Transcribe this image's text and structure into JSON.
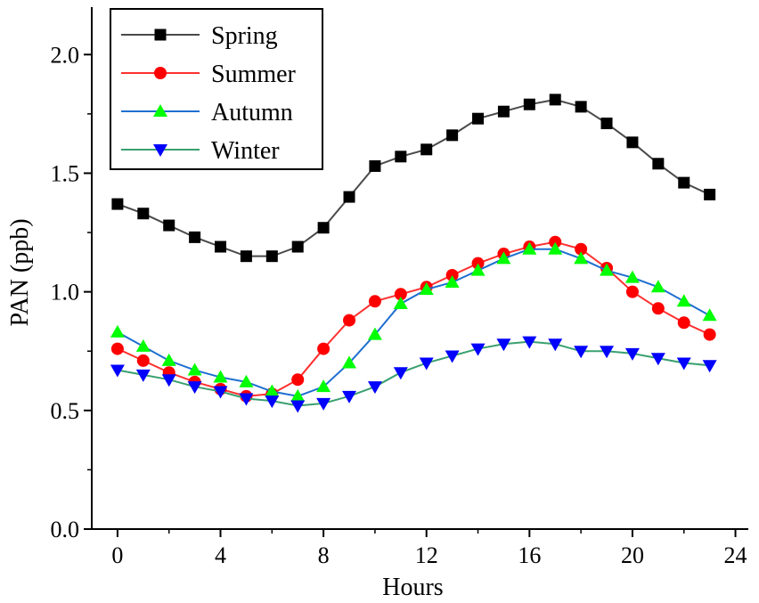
{
  "chart_data": {
    "type": "line",
    "title": "",
    "xlabel": "Hours",
    "ylabel": "PAN (ppb)",
    "xlim": [
      -1,
      24.5
    ],
    "ylim": [
      0.0,
      2.2
    ],
    "x_ticks": [
      0,
      4,
      8,
      12,
      16,
      20,
      24
    ],
    "x_tick_labels": [
      "0",
      "4",
      "8",
      "12",
      "16",
      "20",
      "24"
    ],
    "y_ticks": [
      0.0,
      0.5,
      1.0,
      1.5,
      2.0
    ],
    "y_tick_labels": [
      "0.0",
      "0.5",
      "1.0",
      "1.5",
      "2.0"
    ],
    "grid": false,
    "legend_position": "top-left",
    "x": [
      0,
      1,
      2,
      3,
      4,
      5,
      6,
      7,
      8,
      9,
      10,
      11,
      12,
      13,
      14,
      15,
      16,
      17,
      18,
      19,
      20,
      21,
      22,
      23
    ],
    "series": [
      {
        "name": "Spring",
        "color": "#4a4a4a",
        "marker_color": "#000000",
        "marker": "square",
        "values": [
          1.37,
          1.33,
          1.28,
          1.23,
          1.19,
          1.15,
          1.15,
          1.19,
          1.27,
          1.4,
          1.53,
          1.57,
          1.6,
          1.66,
          1.73,
          1.76,
          1.79,
          1.81,
          1.78,
          1.71,
          1.63,
          1.54,
          1.46,
          1.41
        ]
      },
      {
        "name": "Summer",
        "color": "#ff3030",
        "marker_color": "#ff0000",
        "marker": "circle",
        "values": [
          0.76,
          0.71,
          0.66,
          0.62,
          0.59,
          0.56,
          0.57,
          0.63,
          0.76,
          0.88,
          0.96,
          0.99,
          1.02,
          1.07,
          1.12,
          1.16,
          1.19,
          1.21,
          1.18,
          1.1,
          1.0,
          0.93,
          0.87,
          0.82
        ]
      },
      {
        "name": "Autumn",
        "color": "#1e6fd0",
        "marker_color": "#00ff00",
        "marker": "triangle-up",
        "values": [
          0.83,
          0.77,
          0.71,
          0.67,
          0.64,
          0.62,
          0.58,
          0.56,
          0.6,
          0.7,
          0.82,
          0.95,
          1.01,
          1.04,
          1.09,
          1.14,
          1.18,
          1.18,
          1.14,
          1.09,
          1.06,
          1.02,
          0.96,
          0.9
        ]
      },
      {
        "name": "Winter",
        "color": "#3aa070",
        "marker_color": "#0000ff",
        "marker": "triangle-down",
        "values": [
          0.67,
          0.65,
          0.63,
          0.6,
          0.58,
          0.55,
          0.54,
          0.52,
          0.53,
          0.56,
          0.6,
          0.66,
          0.7,
          0.73,
          0.76,
          0.78,
          0.79,
          0.78,
          0.75,
          0.75,
          0.74,
          0.72,
          0.7,
          0.69
        ]
      }
    ]
  }
}
